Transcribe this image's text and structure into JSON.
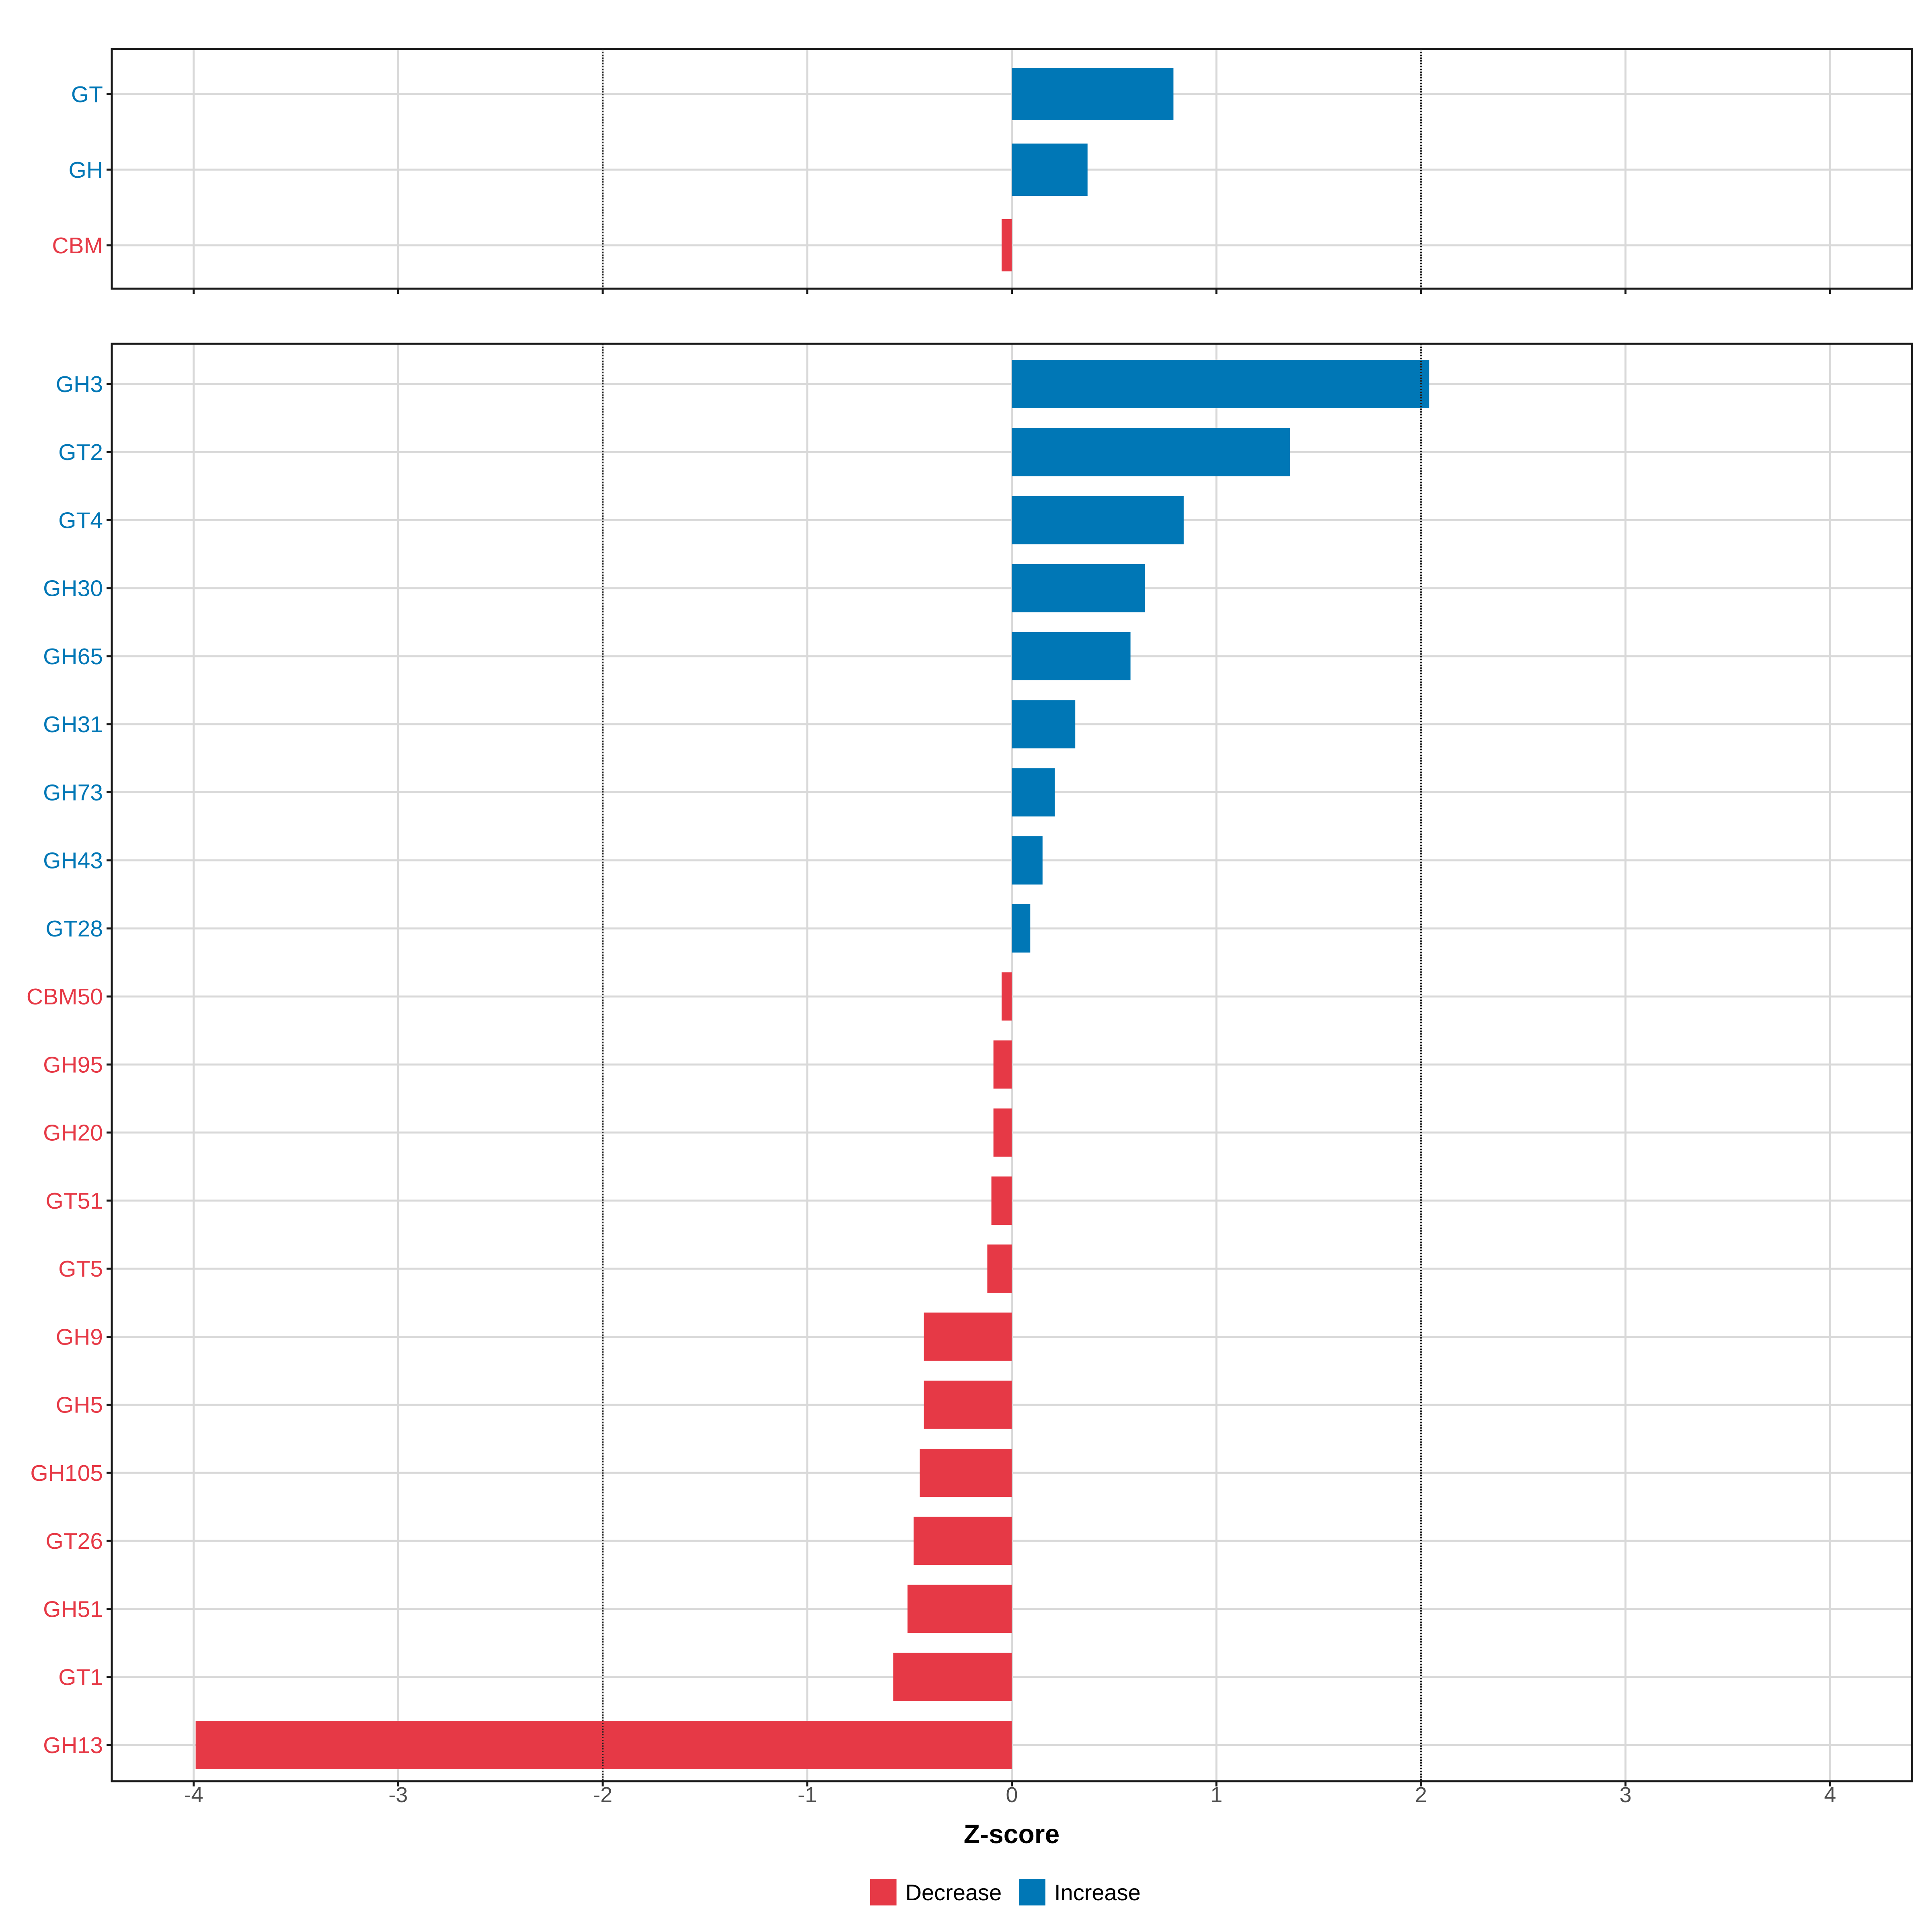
{
  "colors": {
    "decrease": "#E63946",
    "increase": "#0077B6",
    "grid": "#D9D9D9",
    "frame": "#1A1A1A",
    "threshold": "#222222",
    "tick_text": "#4D4D4D",
    "axis_title": "#000000"
  },
  "chart_data": [
    {
      "type": "bar",
      "orientation": "horizontal",
      "panel": "top",
      "categories": [
        "GT",
        "GH",
        "CBM"
      ],
      "values": [
        0.79,
        0.37,
        -0.05
      ],
      "direction": [
        "Increase",
        "Increase",
        "Decrease"
      ],
      "xlim": [
        -4.4,
        4.4
      ],
      "thresholds": [
        -2,
        2
      ],
      "grid": true
    },
    {
      "type": "bar",
      "orientation": "horizontal",
      "panel": "bottom",
      "categories": [
        "GH3",
        "GT2",
        "GT4",
        "GH30",
        "GH65",
        "GH31",
        "GH73",
        "GH43",
        "GT28",
        "CBM50",
        "GH95",
        "GH20",
        "GT51",
        "GT5",
        "GH9",
        "GH5",
        "GH105",
        "GT26",
        "GH51",
        "GT1",
        "GH13"
      ],
      "values": [
        2.04,
        1.36,
        0.84,
        0.65,
        0.58,
        0.31,
        0.21,
        0.15,
        0.09,
        -0.05,
        -0.09,
        -0.09,
        -0.1,
        -0.12,
        -0.43,
        -0.43,
        -0.45,
        -0.48,
        -0.51,
        -0.58,
        -3.99
      ],
      "direction": [
        "Increase",
        "Increase",
        "Increase",
        "Increase",
        "Increase",
        "Increase",
        "Increase",
        "Increase",
        "Increase",
        "Decrease",
        "Decrease",
        "Decrease",
        "Decrease",
        "Decrease",
        "Decrease",
        "Decrease",
        "Decrease",
        "Decrease",
        "Decrease",
        "Decrease",
        "Decrease"
      ],
      "xlim": [
        -4.4,
        4.4
      ],
      "xticks": [
        -4,
        -3,
        -2,
        -1,
        0,
        1,
        2,
        3,
        4
      ],
      "xtick_labels": [
        "-4",
        "-3",
        "-2",
        "-1",
        "0",
        "1",
        "2",
        "3",
        "4"
      ],
      "xlabel": "Z-score",
      "thresholds": [
        -2,
        2
      ],
      "grid": true
    }
  ],
  "legend": {
    "position": "bottom",
    "items": [
      {
        "label": "Decrease",
        "key": "Decrease"
      },
      {
        "label": "Increase",
        "key": "Increase"
      }
    ]
  }
}
